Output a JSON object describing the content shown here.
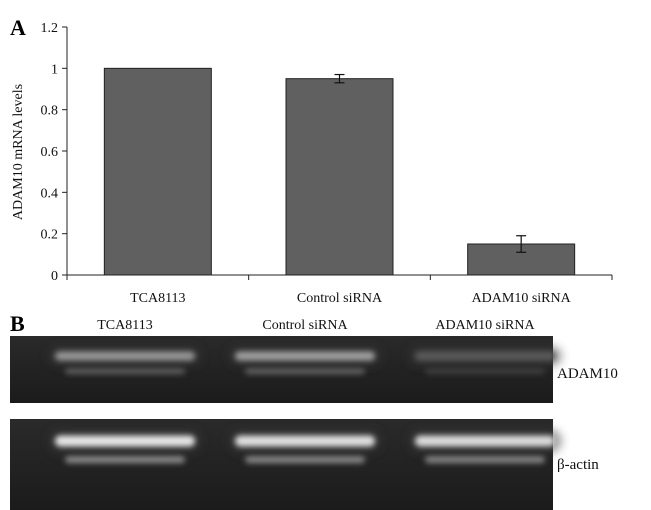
{
  "panel_a": {
    "label": "A",
    "chart_data": {
      "type": "bar",
      "categories": [
        "TCA8113",
        "Control siRNA",
        "ADAM10 siRNA"
      ],
      "values": [
        1.0,
        0.95,
        0.15
      ],
      "errors": [
        0,
        0.02,
        0.04
      ],
      "ylabel": "ADAM10 mRNA levels",
      "xlabel": "",
      "ylim": [
        0,
        1.2
      ],
      "yticks": [
        "0",
        "0.2",
        "0.4",
        "0.6",
        "0.8",
        "1",
        "1.2"
      ],
      "bar_color": "#606060",
      "grid": false
    }
  },
  "panel_b": {
    "label": "B",
    "lanes": [
      "TCA8113",
      "Control siRNA",
      "ADAM10 siRNA"
    ],
    "rows": [
      {
        "label": "ADAM10",
        "band_intensity": [
          0.55,
          0.6,
          0.25
        ]
      },
      {
        "label": "β-actin",
        "band_intensity": [
          0.95,
          0.92,
          0.9
        ]
      }
    ]
  }
}
